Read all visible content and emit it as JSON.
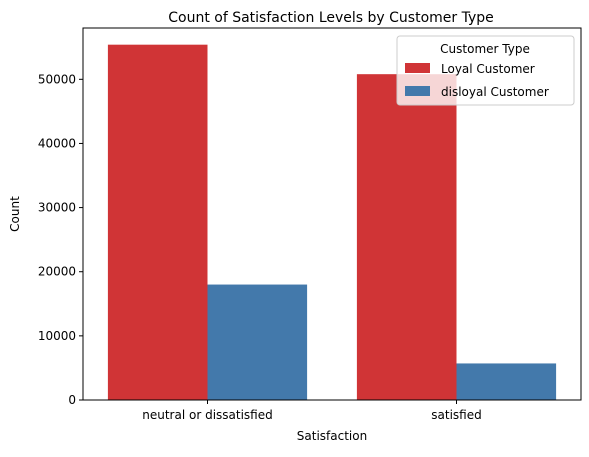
{
  "chart_data": {
    "type": "bar",
    "title": "Count of Satisfaction Levels by Customer Type",
    "xlabel": "Satisfaction",
    "ylabel": "Count",
    "categories": [
      "neutral or dissatisfied",
      "satisfied"
    ],
    "series": [
      {
        "name": "Loyal Customer",
        "values": [
          55400,
          50800
        ],
        "color": "#d03436"
      },
      {
        "name": "disloyal Customer",
        "values": [
          18000,
          5700
        ],
        "color": "#4379ab"
      }
    ],
    "ylim": [
      0,
      58000
    ],
    "yticks": [
      0,
      10000,
      20000,
      30000,
      40000,
      50000
    ],
    "ytick_labels": [
      "0",
      "10000",
      "20000",
      "30000",
      "40000",
      "50000"
    ],
    "grid": false,
    "legend": {
      "title": "Customer Type",
      "placement": "upper right"
    }
  }
}
